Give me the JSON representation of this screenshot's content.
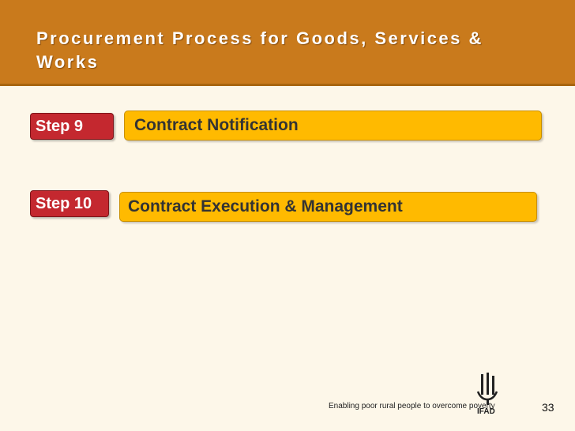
{
  "slide": {
    "title": "Procurement Process for Goods, Services & Works",
    "steps": [
      {
        "badge": "Step 9",
        "label": "Contract Notification"
      },
      {
        "badge": "Step 10",
        "label": "Contract Execution & Management"
      }
    ],
    "footer": {
      "tagline": "Enabling poor rural people to overcome poverty",
      "logo_text": "IFAD",
      "page_number": "33"
    }
  },
  "colors": {
    "header_bg": "#c97a1c",
    "badge_bg": "#c4282f",
    "bar_bg": "#ffba00",
    "page_bg": "#fdf7e9"
  }
}
